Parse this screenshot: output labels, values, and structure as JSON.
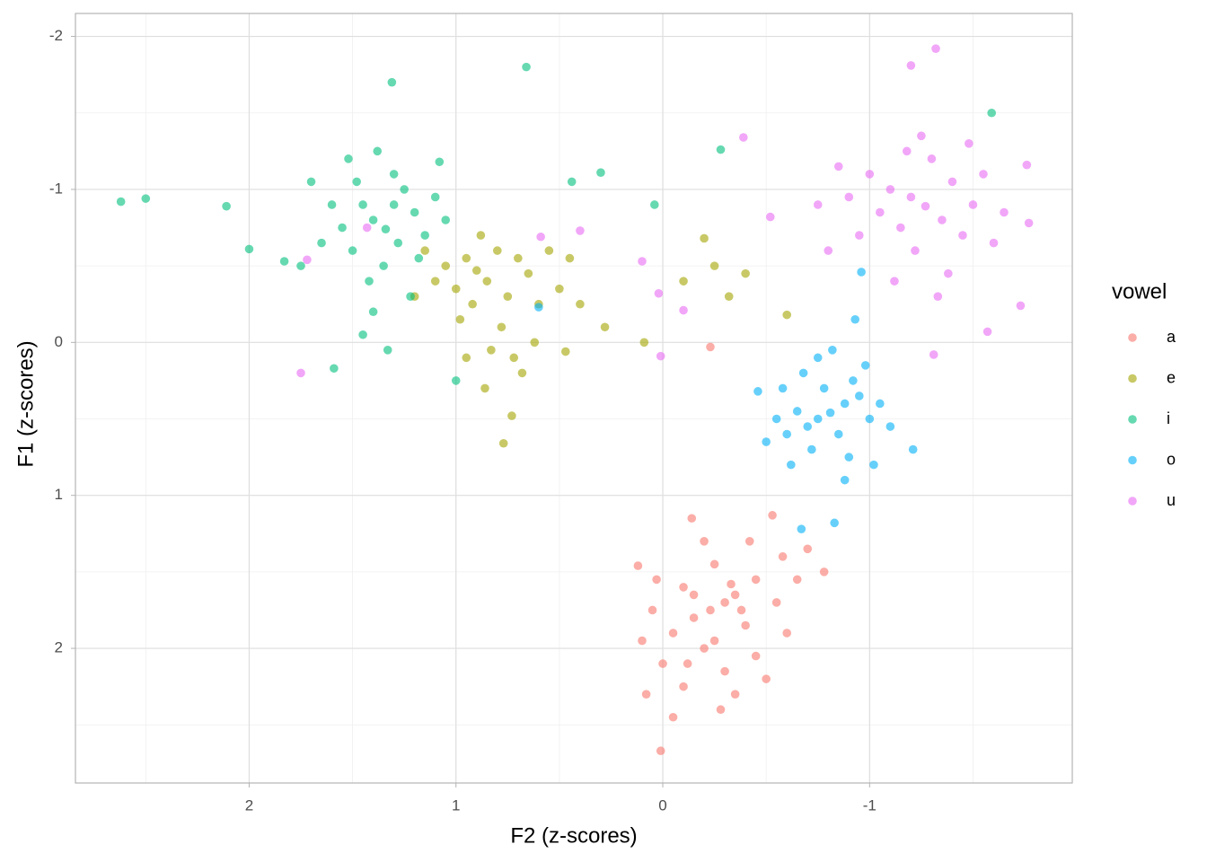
{
  "chart_data": {
    "type": "scatter",
    "x_label": "F2 (z-scores)",
    "y_label": "F1 (z-scores)",
    "legend_title": "vowel",
    "xlim": [
      2.84,
      -1.98
    ],
    "ylim": [
      2.88,
      -2.15
    ],
    "xticks": [
      2,
      1,
      0,
      -1
    ],
    "yticks": [
      -2,
      -1,
      0,
      1,
      2
    ],
    "x_minor_ticks": [
      2.5,
      1.5,
      0.5,
      -0.5,
      -1.5
    ],
    "y_minor_ticks": [
      -1.5,
      -0.5,
      0.5,
      1.5,
      2.5
    ],
    "grid": true,
    "series": [
      {
        "name": "a",
        "color": "#F8766D",
        "x": [
          0.01,
          0.12,
          -0.78,
          -0.53,
          -0.23,
          -0.14,
          -0.23,
          -0.3,
          -0.15,
          -0.35,
          -0.1,
          -0.4,
          -0.2,
          -0.05,
          -0.45,
          -0.25,
          -0.55,
          0.05,
          -0.3,
          -0.6,
          -0.1,
          -0.35,
          0.0,
          -0.5,
          -0.65,
          -0.2,
          0.08,
          -0.05,
          -0.28,
          -0.7,
          -0.15,
          -0.38,
          -0.25,
          -0.45,
          0.03,
          -0.58,
          -0.12,
          -0.33,
          -0.42,
          0.1
        ],
        "y": [
          2.67,
          1.46,
          1.5,
          1.13,
          0.03,
          1.15,
          1.75,
          1.7,
          1.8,
          1.65,
          1.6,
          1.85,
          2.0,
          1.9,
          1.55,
          1.45,
          1.7,
          1.75,
          2.15,
          1.9,
          2.25,
          2.3,
          2.1,
          2.2,
          1.55,
          1.3,
          2.3,
          2.45,
          2.4,
          1.35,
          1.65,
          1.75,
          1.95,
          2.05,
          1.55,
          1.4,
          2.1,
          1.58,
          1.3,
          1.95
        ]
      },
      {
        "name": "e",
        "color": "#A3A500",
        "x": [
          0.9,
          0.95,
          0.85,
          1.0,
          0.8,
          1.05,
          0.75,
          0.92,
          0.7,
          1.1,
          0.88,
          0.65,
          0.98,
          0.78,
          0.6,
          1.15,
          0.83,
          0.72,
          0.95,
          0.55,
          0.5,
          0.45,
          0.68,
          0.77,
          0.73,
          0.09,
          0.28,
          0.47,
          -0.2,
          -0.1,
          -0.25,
          -0.4,
          -0.6,
          -0.32,
          1.2,
          0.62,
          0.4,
          0.86
        ],
        "y": [
          -0.47,
          -0.55,
          -0.4,
          -0.35,
          -0.6,
          -0.5,
          -0.3,
          -0.25,
          -0.55,
          -0.4,
          -0.7,
          -0.45,
          -0.15,
          -0.1,
          -0.25,
          -0.6,
          0.05,
          0.1,
          0.1,
          -0.6,
          -0.35,
          -0.55,
          0.2,
          0.66,
          0.48,
          0.0,
          -0.1,
          0.06,
          -0.68,
          -0.4,
          -0.5,
          -0.45,
          -0.18,
          -0.3,
          -0.3,
          0.0,
          -0.25,
          0.3
        ]
      },
      {
        "name": "i",
        "color": "#00BF7D",
        "x": [
          2.62,
          2.5,
          2.11,
          2.0,
          1.83,
          1.31,
          0.66,
          -1.59,
          1.59,
          1.0,
          -0.28,
          0.04,
          0.44,
          0.3,
          1.34,
          1.4,
          1.28,
          1.45,
          1.2,
          1.5,
          1.25,
          1.35,
          1.15,
          1.55,
          1.3,
          1.42,
          1.1,
          1.6,
          1.38,
          1.18,
          1.48,
          1.22,
          1.65,
          1.05,
          1.4,
          1.7,
          1.3,
          1.52,
          1.08,
          1.45,
          1.33,
          1.75
        ],
        "y": [
          -0.92,
          -0.94,
          -0.89,
          -0.61,
          -0.53,
          -1.7,
          -1.8,
          -1.5,
          0.17,
          0.25,
          -1.26,
          -0.9,
          -1.05,
          -1.11,
          -0.74,
          -0.8,
          -0.65,
          -0.9,
          -0.85,
          -0.6,
          -1.0,
          -0.5,
          -0.7,
          -0.75,
          -1.1,
          -0.4,
          -0.95,
          -0.9,
          -1.25,
          -0.55,
          -1.05,
          -0.3,
          -0.65,
          -0.8,
          -0.2,
          -1.05,
          -0.9,
          -1.2,
          -1.18,
          -0.05,
          0.05,
          -0.5
        ]
      },
      {
        "name": "o",
        "color": "#00B0F6",
        "x": [
          -0.81,
          -0.75,
          -0.88,
          -0.7,
          -0.95,
          -0.85,
          -0.65,
          -0.92,
          -0.78,
          -1.0,
          -0.6,
          -0.72,
          -0.9,
          -0.55,
          -1.05,
          -0.68,
          -0.98,
          -0.82,
          -0.5,
          -1.1,
          -0.62,
          -0.88,
          -1.02,
          -0.75,
          -0.83,
          -0.67,
          -1.21,
          -0.96,
          0.6,
          -0.46,
          -0.93,
          -0.58
        ],
        "y": [
          0.46,
          0.5,
          0.4,
          0.55,
          0.35,
          0.6,
          0.45,
          0.25,
          0.3,
          0.5,
          0.6,
          0.7,
          0.75,
          0.5,
          0.4,
          0.2,
          0.15,
          0.05,
          0.65,
          0.55,
          0.8,
          0.9,
          0.8,
          0.1,
          1.18,
          1.22,
          0.7,
          -0.46,
          -0.23,
          0.32,
          -0.15,
          0.3
        ]
      },
      {
        "name": "u",
        "color": "#E76BF3",
        "x": [
          -1.32,
          -1.2,
          1.75,
          1.72,
          1.43,
          0.01,
          0.1,
          0.02,
          -0.1,
          -0.39,
          -0.52,
          0.4,
          0.59,
          -1.76,
          -1.77,
          -1.73,
          -1.57,
          -1.31,
          -1.27,
          -1.2,
          -1.35,
          -1.1,
          -1.4,
          -1.15,
          -1.45,
          -1.05,
          -1.3,
          -1.5,
          -1.0,
          -1.22,
          -1.55,
          -0.95,
          -1.38,
          -0.9,
          -1.6,
          -1.25,
          -0.85,
          -1.12,
          -1.48,
          -0.8,
          -1.65,
          -1.33,
          -0.75,
          -1.18
        ],
        "y": [
          -1.92,
          -1.81,
          0.2,
          -0.54,
          -0.75,
          0.09,
          -0.53,
          -0.32,
          -0.21,
          -1.34,
          -0.82,
          -0.73,
          -0.69,
          -1.16,
          -0.78,
          -0.24,
          -0.07,
          0.08,
          -0.89,
          -0.95,
          -0.8,
          -1.0,
          -1.05,
          -0.75,
          -0.7,
          -0.85,
          -1.2,
          -0.9,
          -1.1,
          -0.6,
          -1.1,
          -0.7,
          -0.45,
          -0.95,
          -0.65,
          -1.35,
          -1.15,
          -0.4,
          -1.3,
          -0.6,
          -0.85,
          -0.3,
          -0.9,
          -1.25
        ]
      }
    ]
  }
}
